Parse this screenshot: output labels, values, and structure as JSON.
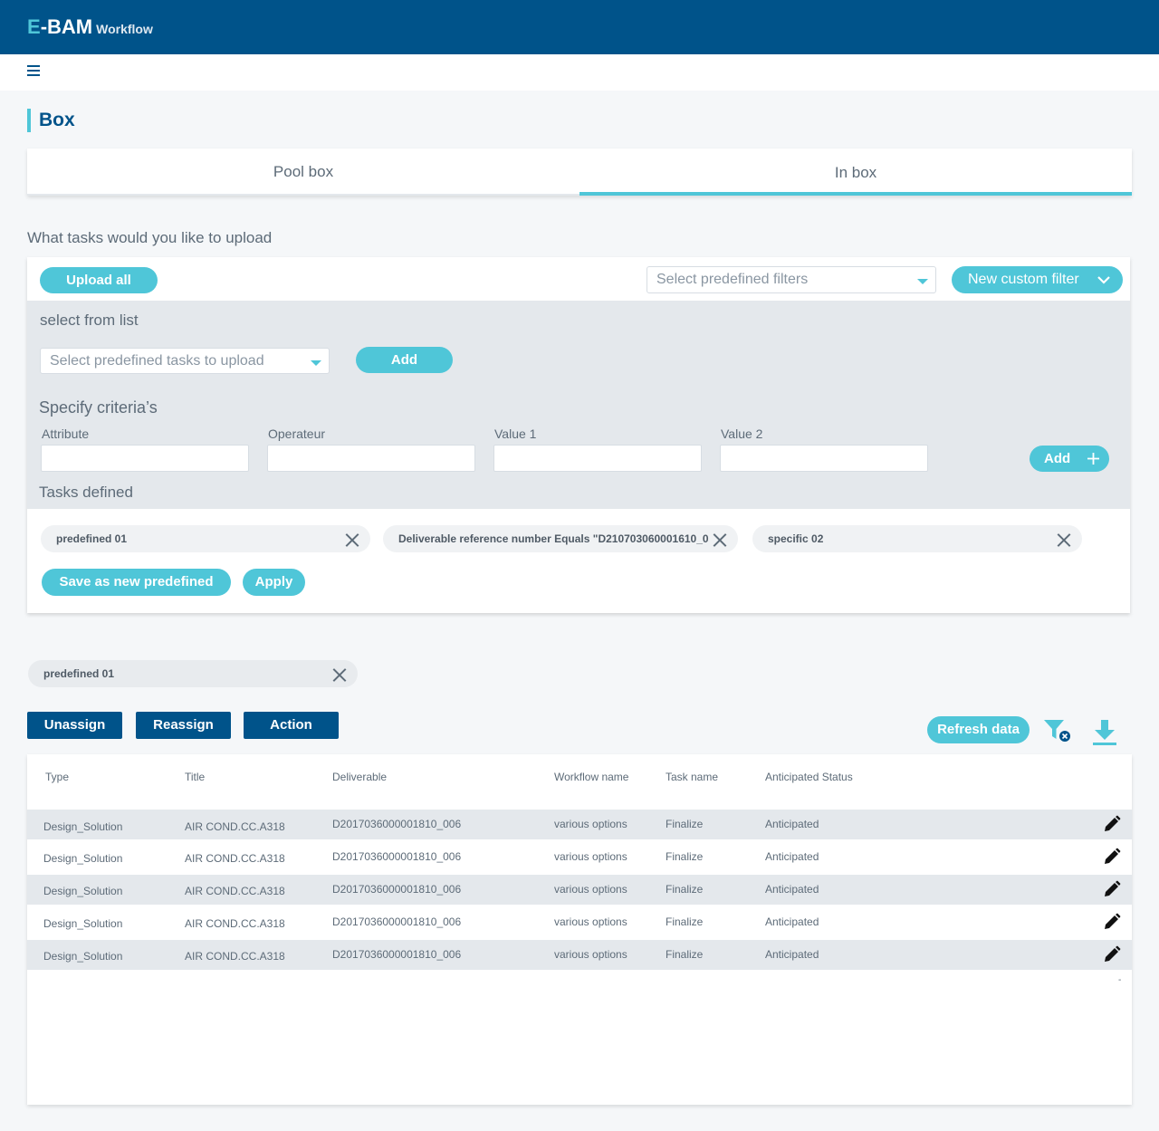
{
  "app": {
    "logo_e": "E",
    "logo_rest": "-BAM",
    "logo_sub": "Workflow"
  },
  "page": {
    "title": "Box"
  },
  "tabs": [
    {
      "label": "Pool box"
    },
    {
      "label": "In box"
    }
  ],
  "upload": {
    "question": "What tasks would you like to upload",
    "upload_all": "Upload all",
    "predefined_filters_placeholder": "Select predefined filters",
    "new_custom_filter": "New custom filter",
    "select_from_list": "select from list",
    "tasks_select_placeholder": "Select predefined tasks to upload",
    "add": "Add",
    "criteria_heading": "Specify criteria’s",
    "criteria_fields": [
      "Attribute",
      "Operateur",
      "Value 1",
      "Value 2"
    ],
    "criteria_add": "Add",
    "tasks_defined_heading": "Tasks defined",
    "chips": [
      "predefined 01",
      "Deliverable reference number Equals \"D210703060001610_0",
      "specific 02"
    ],
    "save_new": "Save as new predefined",
    "apply": "Apply"
  },
  "active_filter": "predefined 01",
  "actions": {
    "unassign": "Unassign",
    "reassign": "Reassign",
    "action": "Action",
    "refresh": "Refresh data"
  },
  "table": {
    "headers": [
      "Type",
      "Title",
      "Deliverable",
      "Workflow name",
      "Task name",
      "Anticipated Status"
    ],
    "rows": [
      [
        "Design_Solution",
        "AIR COND.CC.A318",
        "D2017036000001810_006",
        "various options",
        "Finalize",
        "Anticipated"
      ],
      [
        "Design_Solution",
        "AIR COND.CC.A318",
        "D2017036000001810_006",
        "various options",
        "Finalize",
        "Anticipated"
      ],
      [
        "Design_Solution",
        "AIR COND.CC.A318",
        "D2017036000001810_006",
        "various options",
        "Finalize",
        "Anticipated"
      ],
      [
        "Design_Solution",
        "AIR COND.CC.A318",
        "D2017036000001810_006",
        "various options",
        "Finalize",
        "Anticipated"
      ],
      [
        "Design_Solution",
        "AIR COND.CC.A318",
        "D2017036000001810_006",
        "various options",
        "Finalize",
        "Anticipated"
      ]
    ],
    "footer_mark": "-"
  },
  "colors": {
    "primary": "#00538a",
    "accent": "#4fc6d8",
    "row_shade": "#e4e8ec"
  },
  "icons": [
    "menu-icon",
    "caret-down-icon",
    "chevron-down-icon",
    "plus-icon",
    "close-icon",
    "filter-clear-icon",
    "download-icon",
    "pencil-icon"
  ]
}
